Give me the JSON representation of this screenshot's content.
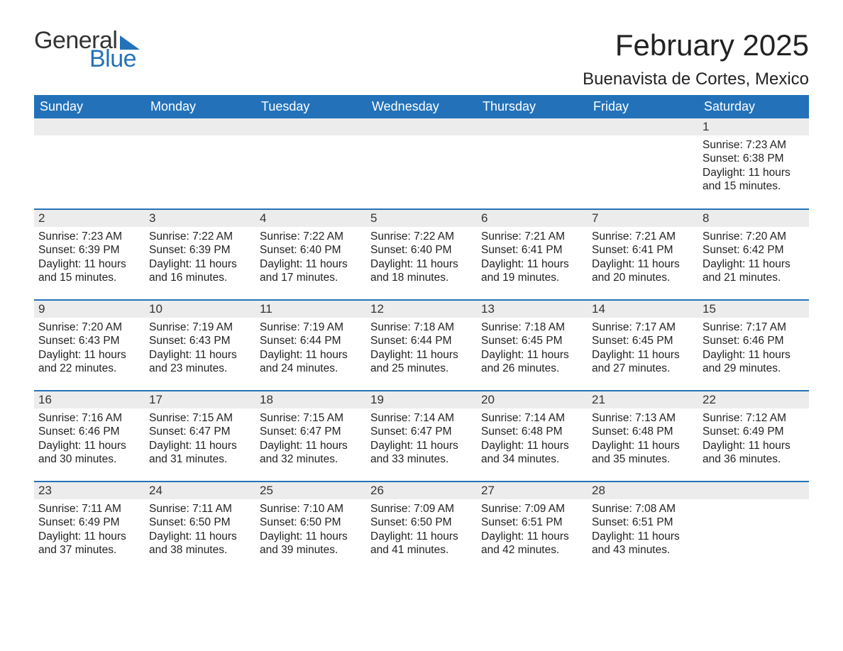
{
  "brand": {
    "general": "General",
    "blue": "Blue"
  },
  "title": "February 2025",
  "location": "Buenavista de Cortes, Mexico",
  "colors": {
    "header_bg": "#2372b9",
    "header_text": "#ffffff",
    "daynum_bg": "#ececec",
    "row_divider": "#2372b9",
    "text": "#222222",
    "logo_blue": "#2372b9",
    "logo_dark": "#333333",
    "page_bg": "#ffffff"
  },
  "typography": {
    "title_fontsize": 42,
    "location_fontsize": 24,
    "dayheader_fontsize": 18,
    "daynum_fontsize": 17,
    "body_fontsize": 15.5
  },
  "dayHeaders": [
    "Sunday",
    "Monday",
    "Tuesday",
    "Wednesday",
    "Thursday",
    "Friday",
    "Saturday"
  ],
  "weeks": [
    [
      null,
      null,
      null,
      null,
      null,
      null,
      {
        "n": "1",
        "sr": "Sunrise: 7:23 AM",
        "ss": "Sunset: 6:38 PM",
        "dl": "Daylight: 11 hours and 15 minutes."
      }
    ],
    [
      {
        "n": "2",
        "sr": "Sunrise: 7:23 AM",
        "ss": "Sunset: 6:39 PM",
        "dl": "Daylight: 11 hours and 15 minutes."
      },
      {
        "n": "3",
        "sr": "Sunrise: 7:22 AM",
        "ss": "Sunset: 6:39 PM",
        "dl": "Daylight: 11 hours and 16 minutes."
      },
      {
        "n": "4",
        "sr": "Sunrise: 7:22 AM",
        "ss": "Sunset: 6:40 PM",
        "dl": "Daylight: 11 hours and 17 minutes."
      },
      {
        "n": "5",
        "sr": "Sunrise: 7:22 AM",
        "ss": "Sunset: 6:40 PM",
        "dl": "Daylight: 11 hours and 18 minutes."
      },
      {
        "n": "6",
        "sr": "Sunrise: 7:21 AM",
        "ss": "Sunset: 6:41 PM",
        "dl": "Daylight: 11 hours and 19 minutes."
      },
      {
        "n": "7",
        "sr": "Sunrise: 7:21 AM",
        "ss": "Sunset: 6:41 PM",
        "dl": "Daylight: 11 hours and 20 minutes."
      },
      {
        "n": "8",
        "sr": "Sunrise: 7:20 AM",
        "ss": "Sunset: 6:42 PM",
        "dl": "Daylight: 11 hours and 21 minutes."
      }
    ],
    [
      {
        "n": "9",
        "sr": "Sunrise: 7:20 AM",
        "ss": "Sunset: 6:43 PM",
        "dl": "Daylight: 11 hours and 22 minutes."
      },
      {
        "n": "10",
        "sr": "Sunrise: 7:19 AM",
        "ss": "Sunset: 6:43 PM",
        "dl": "Daylight: 11 hours and 23 minutes."
      },
      {
        "n": "11",
        "sr": "Sunrise: 7:19 AM",
        "ss": "Sunset: 6:44 PM",
        "dl": "Daylight: 11 hours and 24 minutes."
      },
      {
        "n": "12",
        "sr": "Sunrise: 7:18 AM",
        "ss": "Sunset: 6:44 PM",
        "dl": "Daylight: 11 hours and 25 minutes."
      },
      {
        "n": "13",
        "sr": "Sunrise: 7:18 AM",
        "ss": "Sunset: 6:45 PM",
        "dl": "Daylight: 11 hours and 26 minutes."
      },
      {
        "n": "14",
        "sr": "Sunrise: 7:17 AM",
        "ss": "Sunset: 6:45 PM",
        "dl": "Daylight: 11 hours and 27 minutes."
      },
      {
        "n": "15",
        "sr": "Sunrise: 7:17 AM",
        "ss": "Sunset: 6:46 PM",
        "dl": "Daylight: 11 hours and 29 minutes."
      }
    ],
    [
      {
        "n": "16",
        "sr": "Sunrise: 7:16 AM",
        "ss": "Sunset: 6:46 PM",
        "dl": "Daylight: 11 hours and 30 minutes."
      },
      {
        "n": "17",
        "sr": "Sunrise: 7:15 AM",
        "ss": "Sunset: 6:47 PM",
        "dl": "Daylight: 11 hours and 31 minutes."
      },
      {
        "n": "18",
        "sr": "Sunrise: 7:15 AM",
        "ss": "Sunset: 6:47 PM",
        "dl": "Daylight: 11 hours and 32 minutes."
      },
      {
        "n": "19",
        "sr": "Sunrise: 7:14 AM",
        "ss": "Sunset: 6:47 PM",
        "dl": "Daylight: 11 hours and 33 minutes."
      },
      {
        "n": "20",
        "sr": "Sunrise: 7:14 AM",
        "ss": "Sunset: 6:48 PM",
        "dl": "Daylight: 11 hours and 34 minutes."
      },
      {
        "n": "21",
        "sr": "Sunrise: 7:13 AM",
        "ss": "Sunset: 6:48 PM",
        "dl": "Daylight: 11 hours and 35 minutes."
      },
      {
        "n": "22",
        "sr": "Sunrise: 7:12 AM",
        "ss": "Sunset: 6:49 PM",
        "dl": "Daylight: 11 hours and 36 minutes."
      }
    ],
    [
      {
        "n": "23",
        "sr": "Sunrise: 7:11 AM",
        "ss": "Sunset: 6:49 PM",
        "dl": "Daylight: 11 hours and 37 minutes."
      },
      {
        "n": "24",
        "sr": "Sunrise: 7:11 AM",
        "ss": "Sunset: 6:50 PM",
        "dl": "Daylight: 11 hours and 38 minutes."
      },
      {
        "n": "25",
        "sr": "Sunrise: 7:10 AM",
        "ss": "Sunset: 6:50 PM",
        "dl": "Daylight: 11 hours and 39 minutes."
      },
      {
        "n": "26",
        "sr": "Sunrise: 7:09 AM",
        "ss": "Sunset: 6:50 PM",
        "dl": "Daylight: 11 hours and 41 minutes."
      },
      {
        "n": "27",
        "sr": "Sunrise: 7:09 AM",
        "ss": "Sunset: 6:51 PM",
        "dl": "Daylight: 11 hours and 42 minutes."
      },
      {
        "n": "28",
        "sr": "Sunrise: 7:08 AM",
        "ss": "Sunset: 6:51 PM",
        "dl": "Daylight: 11 hours and 43 minutes."
      },
      null
    ]
  ]
}
